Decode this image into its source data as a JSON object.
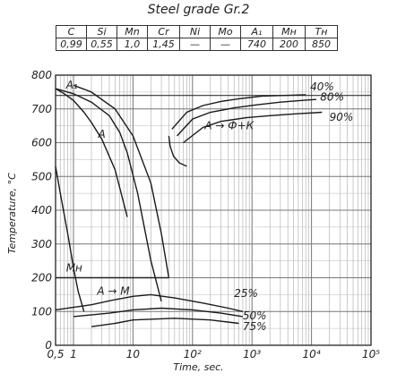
{
  "title": "Steel grade Gr.2",
  "composition": {
    "headers": [
      "C",
      "Si",
      "Mn",
      "Cr",
      "Ni",
      "Mo",
      "A₁",
      "Mн",
      "Tн"
    ],
    "values": [
      "0,99",
      "0,55",
      "1,0",
      "1,45",
      "—",
      "—",
      "740",
      "200",
      "850"
    ]
  },
  "chart_data": {
    "type": "line",
    "title": "",
    "xlabel": "Time, sec.",
    "ylabel": "Temperature, °C",
    "xscale": "log",
    "xlim": [
      0.5,
      100000
    ],
    "ylim": [
      0,
      800
    ],
    "x_tick_labels": [
      {
        "x": 0.5,
        "label": "0,5"
      },
      {
        "x": 1,
        "label": "1"
      },
      {
        "x": 10,
        "label": "10"
      },
      {
        "x": 100,
        "label": "10²"
      },
      {
        "x": 1000,
        "label": "10³"
      },
      {
        "x": 10000,
        "label": "10⁴"
      },
      {
        "x": 100000,
        "label": "10⁵"
      }
    ],
    "y_ticks": [
      0,
      100,
      200,
      300,
      400,
      500,
      600,
      700,
      800
    ],
    "grid": true,
    "reference_lines": [
      {
        "name": "A₁",
        "y": 740
      },
      {
        "name": "Mн",
        "y": 200
      }
    ],
    "series": [
      {
        "name": "",
        "x": [
          0.5,
          0.7,
          1,
          1.5,
          2,
          3,
          5,
          8
        ],
        "y": [
          760,
          745,
          725,
          690,
          660,
          610,
          520,
          380
        ]
      },
      {
        "name": "",
        "x": [
          0.5,
          1,
          2,
          4,
          6,
          8,
          12,
          20,
          30
        ],
        "y": [
          760,
          745,
          720,
          680,
          630,
          570,
          450,
          250,
          130
        ]
      },
      {
        "name": "",
        "x": [
          1,
          2,
          5,
          10,
          20,
          30,
          40
        ],
        "y": [
          770,
          750,
          700,
          620,
          480,
          330,
          200
        ]
      },
      {
        "name": "",
        "x": [
          0.5,
          0.6,
          0.8,
          1,
          1.2,
          1.5
        ],
        "y": [
          530,
          450,
          330,
          230,
          160,
          100
        ]
      },
      {
        "name": "40%",
        "x": [
          45,
          80,
          150,
          300,
          600,
          1500,
          4000,
          8000
        ],
        "y": [
          640,
          690,
          710,
          722,
          730,
          738,
          740,
          742
        ]
      },
      {
        "name": "80%",
        "x": [
          55,
          100,
          200,
          500,
          1200,
          3000,
          8000,
          12000
        ],
        "y": [
          620,
          670,
          690,
          703,
          712,
          720,
          726,
          728
        ]
      },
      {
        "name": "90%",
        "x": [
          70,
          150,
          300,
          800,
          2000,
          5000,
          15000
        ],
        "y": [
          600,
          645,
          663,
          674,
          680,
          685,
          690
        ]
      },
      {
        "name": "",
        "x": [
          40,
          42,
          48,
          60,
          80
        ],
        "y": [
          620,
          590,
          560,
          540,
          530
        ]
      },
      {
        "name": "25%",
        "x": [
          0.5,
          2,
          5,
          10,
          20,
          50,
          150,
          400,
          700
        ],
        "y": [
          105,
          120,
          135,
          145,
          150,
          140,
          125,
          110,
          100
        ]
      },
      {
        "name": "50%",
        "x": [
          1,
          4,
          10,
          30,
          100,
          300,
          700
        ],
        "y": [
          85,
          95,
          105,
          110,
          105,
          95,
          85
        ]
      },
      {
        "name": "75%",
        "x": [
          2,
          5,
          10,
          50,
          200,
          600
        ],
        "y": [
          55,
          65,
          75,
          80,
          75,
          65
        ]
      }
    ],
    "annotations": [
      {
        "text": "A₁",
        "x": 0.75,
        "y": 760
      },
      {
        "text": "A",
        "x": 2.6,
        "y": 615
      },
      {
        "text": "A → Ф+К",
        "x": 160,
        "y": 640
      },
      {
        "text": "Mн",
        "x": 0.75,
        "y": 218
      },
      {
        "text": "A → M",
        "x": 2.5,
        "y": 150
      },
      {
        "text": "40%",
        "x": 9500,
        "y": 755
      },
      {
        "text": "80%",
        "x": 14000,
        "y": 725
      },
      {
        "text": "90%",
        "x": 20000,
        "y": 665
      },
      {
        "text": "25%",
        "x": 500,
        "y": 143
      },
      {
        "text": "50%",
        "x": 700,
        "y": 77
      },
      {
        "text": "75%",
        "x": 700,
        "y": 45
      }
    ]
  }
}
